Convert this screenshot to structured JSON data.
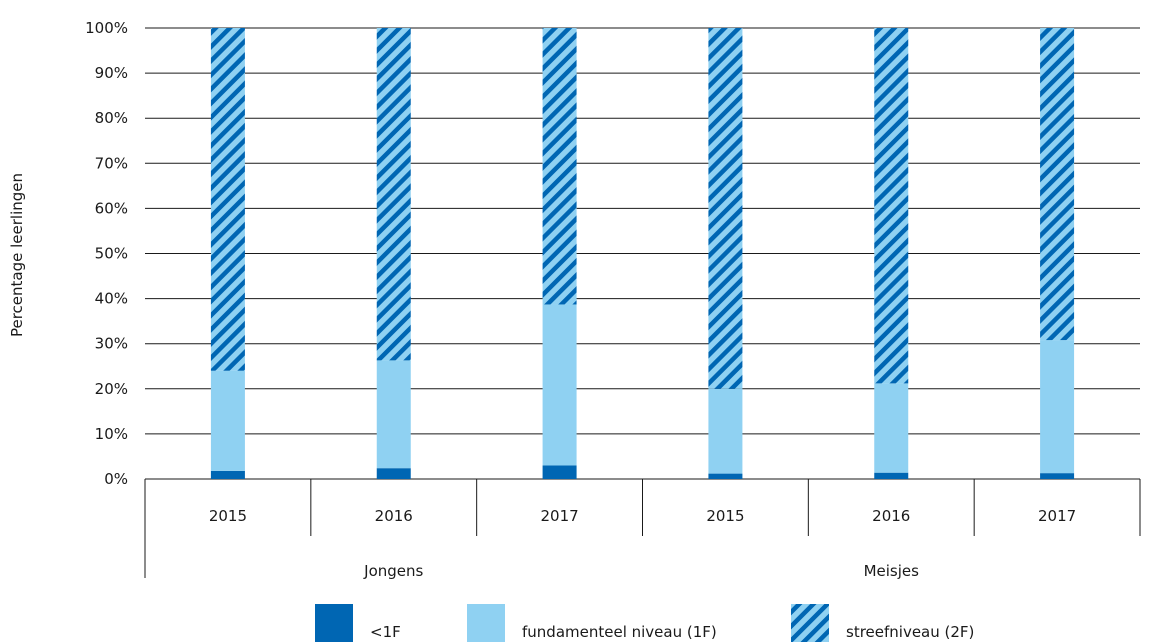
{
  "chart_data": {
    "type": "bar",
    "stacked": true,
    "percent_axis": true,
    "ylabel": "Percentage leerlingen",
    "ylim": [
      0,
      100
    ],
    "yticks": [
      "0%",
      "10%",
      "20%",
      "30%",
      "40%",
      "50%",
      "60%",
      "70%",
      "80%",
      "90%",
      "100%"
    ],
    "categories": [
      "2015",
      "2016",
      "2017",
      "2015",
      "2016",
      "2017"
    ],
    "groups": [
      {
        "label": "Jongens",
        "span": [
          0,
          2
        ]
      },
      {
        "label": "Meisjes",
        "span": [
          3,
          5
        ]
      }
    ],
    "series": [
      {
        "name": "<1F",
        "values": [
          1.8,
          2.4,
          3.0,
          1.2,
          1.4,
          1.3
        ],
        "color": "#0066b3",
        "pattern": "solid"
      },
      {
        "name": "fundamenteel niveau (1F)",
        "values": [
          22.2,
          23.9,
          35.7,
          18.8,
          19.8,
          29.5
        ],
        "color": "#8fd1f2",
        "pattern": "solid"
      },
      {
        "name": "streefniveau (2F)",
        "values": [
          76.0,
          73.7,
          61.3,
          80.0,
          78.8,
          69.2
        ],
        "color": "#0066b3",
        "pattern": "hatched"
      }
    ],
    "grid": true,
    "legend_position": "bottom"
  }
}
